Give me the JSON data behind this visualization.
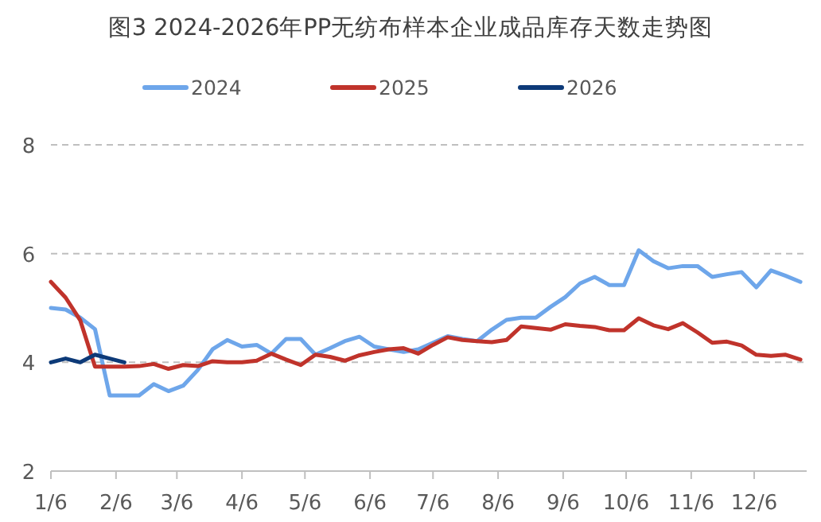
{
  "chart_data": {
    "type": "line",
    "title": "图3 2024-2026年PP无纺布样本企业成品库存天数走势图",
    "x": [
      "--01-06",
      "--01-13",
      "--01-20",
      "--01-27",
      "--02-03",
      "--02-10",
      "--02-17",
      "--02-24",
      "--03-02",
      "--03-09",
      "--03-16",
      "--03-23",
      "--03-30",
      "--04-06",
      "--04-13",
      "--04-20",
      "--04-27",
      "--05-04",
      "--05-11",
      "--05-18",
      "--05-25",
      "--06-01",
      "--06-08",
      "--06-15",
      "--06-22",
      "--06-29",
      "--07-06",
      "--07-13",
      "--07-20",
      "--07-27",
      "--08-03",
      "--08-10",
      "--08-17",
      "--08-24",
      "--08-31",
      "--09-07",
      "--09-14",
      "--09-21",
      "--09-28",
      "--10-05",
      "--10-12",
      "--10-19",
      "--10-26",
      "--11-02",
      "--11-09",
      "--11-16",
      "--11-23",
      "--11-30",
      "--12-07",
      "--12-14",
      "--12-21",
      "--12-28"
    ],
    "series": [
      {
        "name": "2024",
        "color": "#6ea6ea",
        "values": [
          5.0,
          4.97,
          4.82,
          4.61,
          3.39,
          3.39,
          3.39,
          3.6,
          3.47,
          3.57,
          3.86,
          4.24,
          4.41,
          4.29,
          4.32,
          4.16,
          4.43,
          4.43,
          4.14,
          4.26,
          4.39,
          4.47,
          4.29,
          4.24,
          4.19,
          4.24,
          4.36,
          4.48,
          4.43,
          4.39,
          4.6,
          4.78,
          4.82,
          4.82,
          5.02,
          5.2,
          5.45,
          5.57,
          5.42,
          5.42,
          6.06,
          5.86,
          5.73,
          5.77,
          5.77,
          5.57,
          5.62,
          5.66,
          5.38,
          5.69,
          5.59,
          5.48
        ]
      },
      {
        "name": "2025",
        "color": "#c0332b",
        "values": [
          5.48,
          5.19,
          4.77,
          3.92,
          3.92,
          3.92,
          3.93,
          3.97,
          3.88,
          3.95,
          3.93,
          4.02,
          4.0,
          4.0,
          4.03,
          4.16,
          4.05,
          3.95,
          4.14,
          4.1,
          4.03,
          4.13,
          4.19,
          4.24,
          4.26,
          4.16,
          4.32,
          4.46,
          4.41,
          4.39,
          4.37,
          4.41,
          4.66,
          4.63,
          4.6,
          4.7,
          4.67,
          4.65,
          4.59,
          4.59,
          4.81,
          4.68,
          4.61,
          4.72,
          4.55,
          4.36,
          4.38,
          4.31,
          4.14,
          4.12,
          4.14,
          4.05
        ]
      },
      {
        "name": "2026",
        "color": "#0d3a78",
        "x": [
          "--01-06",
          "--01-13",
          "--01-20",
          "--01-27",
          "--02-03",
          "--02-10"
        ],
        "values": [
          4.0,
          4.07,
          4.0,
          4.14,
          4.07,
          4.0
        ]
      }
    ],
    "xlim": [
      "--01-06",
      "--12-31"
    ],
    "xticks": [
      {
        "value": "--01-06",
        "label": "1/6"
      },
      {
        "value": "--02-06",
        "label": "2/6"
      },
      {
        "value": "--03-06",
        "label": "3/6"
      },
      {
        "value": "--04-06",
        "label": "4/6"
      },
      {
        "value": "--05-06",
        "label": "5/6"
      },
      {
        "value": "--06-06",
        "label": "6/6"
      },
      {
        "value": "--07-06",
        "label": "7/6"
      },
      {
        "value": "--08-06",
        "label": "8/6"
      },
      {
        "value": "--09-06",
        "label": "9/6"
      },
      {
        "value": "--10-06",
        "label": "10/6"
      },
      {
        "value": "--11-06",
        "label": "11/6"
      },
      {
        "value": "--12-06",
        "label": "12/6"
      }
    ],
    "ylim": [
      2,
      8
    ],
    "yticks": [
      2,
      4,
      6,
      8
    ],
    "grid": "y",
    "legend": "top",
    "marker": "none",
    "line_style": "solid"
  }
}
